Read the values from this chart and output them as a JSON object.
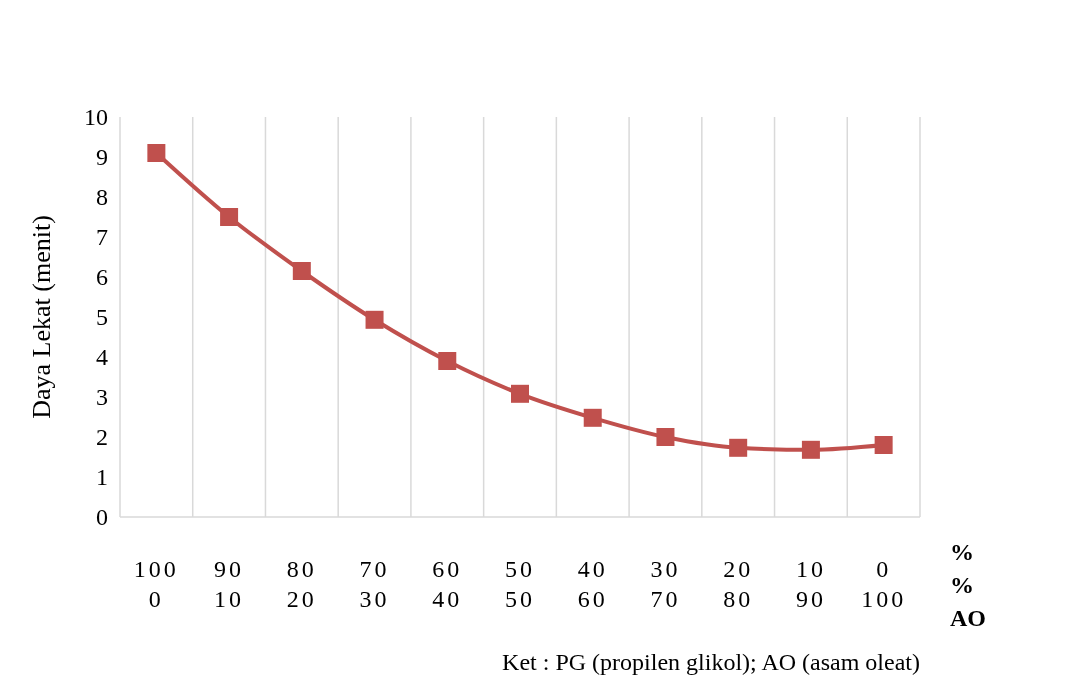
{
  "chart_data": {
    "type": "line",
    "ylabel": "Daya Lekat (menit)",
    "categories": [
      "100\n0",
      "90\n10",
      "80\n20",
      "70\n30",
      "60\n40",
      "50\n50",
      "40\n60",
      "30\n70",
      "20\n80",
      "10\n90",
      "0\n100"
    ],
    "series": [
      {
        "color": "#c0504d",
        "values": [
          9.1,
          7.5,
          6.15,
          4.93,
          3.9,
          3.08,
          2.48,
          2.0,
          1.73,
          1.68,
          1.8
        ]
      }
    ],
    "ylim": [
      0,
      10
    ],
    "yticks": [
      0,
      1,
      2,
      3,
      4,
      5,
      6,
      7,
      8,
      9,
      10
    ],
    "grid": "x",
    "marker": "square",
    "line_style": "solid",
    "annotations": [
      "%\n%\nAO",
      "Ket : PG (propilen glikol);  AO (asam oleat)"
    ]
  }
}
